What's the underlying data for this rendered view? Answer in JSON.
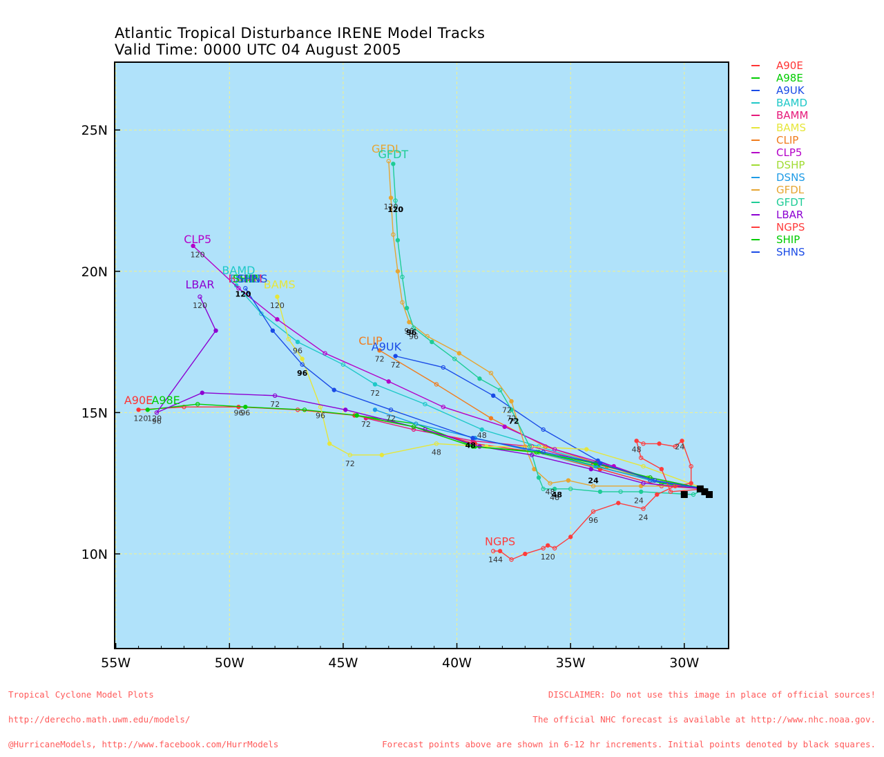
{
  "title": {
    "line1": "Atlantic Tropical Disturbance IRENE Model Tracks",
    "line2": "Valid Time: 0000 UTC 04 August 2005"
  },
  "colors": {
    "ocean": "#b0e2fa",
    "grid": "#f2f28c",
    "frame": "#000000"
  },
  "axes": {
    "lon_ticks": [
      {
        "lon": -55,
        "label": "55W"
      },
      {
        "lon": -50,
        "label": "50W"
      },
      {
        "lon": -45,
        "label": "45W"
      },
      {
        "lon": -40,
        "label": "40W"
      },
      {
        "lon": -35,
        "label": "35W"
      },
      {
        "lon": -30,
        "label": "30W"
      }
    ],
    "lat_ticks": [
      {
        "lat": 25,
        "label": "25N"
      },
      {
        "lat": 20,
        "label": "20N"
      },
      {
        "lat": 15,
        "label": "15N"
      },
      {
        "lat": 10,
        "label": "10N"
      }
    ],
    "lon_range": [
      -55.05,
      -28.05
    ],
    "lat_range": [
      6.65,
      27.4
    ]
  },
  "initial_points": [
    {
      "lon": -30.0,
      "lat": 12.1
    },
    {
      "lon": -29.3,
      "lat": 12.3
    },
    {
      "lon": -29.1,
      "lat": 12.2
    },
    {
      "lon": -28.9,
      "lat": 12.1
    }
  ],
  "models": [
    {
      "name": "A90E",
      "color": "#ff3333",
      "label_at": [
        -54.0,
        15.3
      ],
      "points": [
        [
          -29.1,
          12.3
        ],
        [
          -31.0,
          12.4
        ],
        [
          -33.7,
          13.0
        ],
        [
          -36.5,
          13.6
        ],
        [
          -39.2,
          13.9
        ],
        [
          -41.9,
          14.5
        ],
        [
          -44.5,
          14.9
        ],
        [
          -47.0,
          15.1
        ],
        [
          -49.6,
          15.2
        ],
        [
          -52.0,
          15.2
        ],
        [
          -54.0,
          15.1
        ]
      ],
      "labels": [
        {
          "text": "96",
          "at": [
            -49.6,
            14.9
          ]
        },
        {
          "text": "120",
          "at": [
            -53.9,
            14.7
          ]
        }
      ]
    },
    {
      "name": "A98E",
      "color": "#00cc00",
      "label_at": [
        -52.8,
        15.3
      ],
      "points": [
        [
          -29.1,
          12.3
        ],
        [
          -31.0,
          12.5
        ],
        [
          -33.8,
          13.1
        ],
        [
          -36.4,
          13.6
        ],
        [
          -39.2,
          13.8
        ],
        [
          -41.8,
          14.6
        ],
        [
          -44.4,
          14.9
        ],
        [
          -46.7,
          15.1
        ],
        [
          -49.3,
          15.2
        ],
        [
          -51.4,
          15.3
        ],
        [
          -53.6,
          15.1
        ]
      ],
      "labels": [
        {
          "text": "96",
          "at": [
            -49.3,
            14.9
          ]
        },
        {
          "text": "120",
          "at": [
            -53.3,
            14.7
          ]
        }
      ]
    },
    {
      "name": "A9UK",
      "color": "#1a4be6",
      "label_at": [
        -43.1,
        17.2
      ],
      "points": [
        [
          -29.1,
          12.3
        ],
        [
          -31.5,
          12.6
        ],
        [
          -33.8,
          13.3
        ],
        [
          -36.2,
          14.4
        ],
        [
          -38.4,
          15.6
        ],
        [
          -40.6,
          16.6
        ],
        [
          -42.7,
          17.0
        ]
      ],
      "labels": [
        {
          "text": "72",
          "at": [
            -42.7,
            16.6
          ]
        }
      ]
    },
    {
      "name": "BAMD",
      "color": "#1ec8c8",
      "label_at": [
        -49.6,
        19.9
      ],
      "points": [
        [
          -29.1,
          12.3
        ],
        [
          -31.5,
          12.7
        ],
        [
          -33.9,
          13.2
        ],
        [
          -36.4,
          13.8
        ],
        [
          -38.9,
          14.4
        ],
        [
          -41.4,
          15.3
        ],
        [
          -43.6,
          16.0
        ],
        [
          -45.0,
          16.7
        ],
        [
          -47.0,
          17.5
        ],
        [
          -48.6,
          18.5
        ],
        [
          -49.7,
          19.5
        ]
      ],
      "labels": [
        {
          "text": "72",
          "at": [
            -43.6,
            15.6
          ]
        },
        {
          "text": "48",
          "at": [
            -38.9,
            14.1
          ]
        },
        {
          "text": "96",
          "at": [
            -47.0,
            17.1
          ]
        }
      ]
    },
    {
      "name": "BAMM",
      "color": "#e6197a",
      "label_at": [
        -49.3,
        19.6
      ],
      "points": [
        [
          -29.1,
          12.3
        ],
        [
          -31.5,
          12.7
        ],
        [
          -34.0,
          13.2
        ],
        [
          -36.7,
          13.8
        ],
        [
          -39.3,
          14.0
        ],
        [
          -41.9,
          14.4
        ],
        [
          -44.0,
          14.8
        ]
      ],
      "labels": [
        {
          "text": "72",
          "at": [
            -44.0,
            14.5
          ]
        }
      ]
    },
    {
      "name": "BAMS",
      "color": "#e6e63a",
      "label_at": [
        -47.8,
        19.4
      ],
      "points": [
        [
          -29.1,
          12.3
        ],
        [
          -31.8,
          13.1
        ],
        [
          -34.3,
          13.7
        ],
        [
          -36.8,
          13.8
        ],
        [
          -38.7,
          13.8
        ],
        [
          -40.9,
          13.9
        ],
        [
          -43.3,
          13.5
        ],
        [
          -44.7,
          13.5
        ],
        [
          -45.6,
          13.9
        ],
        [
          -46.0,
          15.2
        ],
        [
          -46.8,
          16.9
        ],
        [
          -47.4,
          17.6
        ],
        [
          -47.9,
          19.1
        ]
      ],
      "labels": [
        {
          "text": "72",
          "at": [
            -44.7,
            13.1
          ]
        },
        {
          "text": "48",
          "at": [
            -40.9,
            13.5
          ]
        },
        {
          "text": "96",
          "at": [
            -46.0,
            14.8
          ]
        },
        {
          "text": "120",
          "at": [
            -47.9,
            18.7
          ]
        }
      ]
    },
    {
      "name": "CLIP",
      "color": "#f07c1e",
      "label_at": [
        -43.8,
        17.4
      ],
      "points": [
        [
          -29.1,
          12.3
        ],
        [
          -31.3,
          12.6
        ],
        [
          -33.4,
          13.1
        ],
        [
          -36.1,
          13.8
        ],
        [
          -38.5,
          14.8
        ],
        [
          -40.9,
          16.0
        ],
        [
          -43.4,
          17.2
        ]
      ],
      "labels": [
        {
          "text": "72",
          "at": [
            -43.4,
            16.8
          ]
        }
      ]
    },
    {
      "name": "CLP5",
      "color": "#b400c8",
      "label_at": [
        -51.4,
        21.0
      ],
      "points": [
        [
          -29.1,
          12.3
        ],
        [
          -31.3,
          12.6
        ],
        [
          -33.1,
          13.1
        ],
        [
          -35.7,
          13.7
        ],
        [
          -37.9,
          14.5
        ],
        [
          -40.6,
          15.2
        ],
        [
          -43.0,
          16.1
        ],
        [
          -45.8,
          17.1
        ],
        [
          -47.9,
          18.3
        ],
        [
          -49.6,
          19.4
        ],
        [
          -51.6,
          20.9
        ]
      ],
      "labels": [
        {
          "text": "120",
          "at": [
            -51.4,
            20.5
          ]
        }
      ]
    },
    {
      "name": "DSHP",
      "color": "#a0dc32",
      "label_at": [
        -49.3,
        19.6
      ],
      "points": [
        [
          -29.1,
          12.3
        ],
        [
          -31.6,
          12.7
        ],
        [
          -34.0,
          13.1
        ],
        [
          -36.6,
          13.6
        ],
        [
          -39.3,
          13.8
        ],
        [
          -41.9,
          14.5
        ],
        [
          -44.4,
          14.9
        ]
      ],
      "labels": []
    },
    {
      "name": "DSNS",
      "color": "#1e9be6",
      "label_at": [
        -49.3,
        19.6
      ],
      "points": [
        [
          -29.1,
          12.3
        ],
        [
          -31.4,
          12.6
        ],
        [
          -33.9,
          13.1
        ],
        [
          -36.5,
          13.6
        ],
        [
          -39.2,
          14.1
        ],
        [
          -41.8,
          14.6
        ],
        [
          -43.6,
          15.1
        ]
      ],
      "labels": []
    },
    {
      "name": "GFDL",
      "color": "#e6a532",
      "label_at": [
        -43.1,
        24.2
      ],
      "points": [
        [
          -29.1,
          12.3
        ],
        [
          -30.4,
          12.4
        ],
        [
          -31.9,
          12.4
        ],
        [
          -34.0,
          12.4
        ],
        [
          -35.1,
          12.6
        ],
        [
          -35.9,
          12.5
        ],
        [
          -36.6,
          13.0
        ],
        [
          -37.0,
          13.8
        ],
        [
          -37.6,
          15.4
        ],
        [
          -38.5,
          16.4
        ],
        [
          -39.9,
          17.1
        ],
        [
          -41.3,
          17.7
        ],
        [
          -42.1,
          18.2
        ],
        [
          -42.4,
          18.9
        ],
        [
          -42.6,
          20.0
        ],
        [
          -42.8,
          21.3
        ],
        [
          -42.9,
          22.6
        ],
        [
          -43.0,
          23.9
        ]
      ],
      "labels": [
        {
          "text": "72",
          "at": [
            -37.8,
            15.0
          ]
        },
        {
          "text": "48",
          "at": [
            -35.9,
            12.1
          ]
        },
        {
          "text": "96",
          "at": [
            -42.1,
            17.8
          ]
        },
        {
          "text": "120",
          "at": [
            -42.9,
            22.2
          ]
        }
      ]
    },
    {
      "name": "GFDT",
      "color": "#1ecc96",
      "label_at": [
        -42.8,
        24.0
      ],
      "points": [
        [
          -29.1,
          12.3
        ],
        [
          -29.6,
          12.1
        ],
        [
          -31.9,
          12.2
        ],
        [
          -32.8,
          12.2
        ],
        [
          -33.7,
          12.2
        ],
        [
          -35.0,
          12.3
        ],
        [
          -35.7,
          12.3
        ],
        [
          -36.2,
          12.3
        ],
        [
          -36.4,
          12.7
        ],
        [
          -36.8,
          13.8
        ],
        [
          -37.6,
          15.1
        ],
        [
          -38.1,
          15.8
        ],
        [
          -39.0,
          16.2
        ],
        [
          -40.1,
          16.9
        ],
        [
          -41.1,
          17.5
        ],
        [
          -41.9,
          18.0
        ],
        [
          -42.2,
          18.7
        ],
        [
          -42.4,
          19.8
        ],
        [
          -42.6,
          21.1
        ],
        [
          -42.7,
          22.5
        ],
        [
          -42.8,
          23.8
        ]
      ],
      "labels": [
        {
          "text": "24",
          "at": [
            -32.0,
            11.8
          ]
        },
        {
          "text": "48",
          "at": [
            -35.7,
            11.9
          ]
        },
        {
          "text": "72",
          "at": [
            -37.6,
            14.7
          ]
        },
        {
          "text": "96",
          "at": [
            -41.9,
            17.6
          ]
        },
        {
          "text": "120",
          "at": [
            -42.7,
            22.1
          ]
        }
      ]
    },
    {
      "name": "LBAR",
      "color": "#8c00d2",
      "label_at": [
        -51.3,
        19.4
      ],
      "points": [
        [
          -29.1,
          12.3
        ],
        [
          -31.8,
          12.5
        ],
        [
          -34.1,
          13.0
        ],
        [
          -36.7,
          13.5
        ],
        [
          -39.0,
          13.8
        ],
        [
          -41.4,
          14.4
        ],
        [
          -44.9,
          15.1
        ],
        [
          -48.0,
          15.6
        ],
        [
          -51.2,
          15.7
        ],
        [
          -53.2,
          15.0
        ],
        [
          -50.6,
          17.9
        ],
        [
          -51.3,
          19.1
        ]
      ],
      "labels": [
        {
          "text": "72",
          "at": [
            -48.0,
            15.2
          ]
        },
        {
          "text": "96",
          "at": [
            -53.2,
            14.6
          ]
        },
        {
          "text": "120",
          "at": [
            -51.3,
            18.7
          ]
        }
      ]
    },
    {
      "name": "NGPS",
      "color": "#ff3c3c",
      "label_at": [
        -38.1,
        10.3
      ],
      "points": [
        [
          -29.1,
          12.3
        ],
        [
          -30.6,
          12.2
        ],
        [
          -31.0,
          13.0
        ],
        [
          -31.9,
          13.4
        ],
        [
          -32.1,
          14.0
        ],
        [
          -31.8,
          13.9
        ],
        [
          -31.1,
          13.9
        ],
        [
          -30.4,
          13.8
        ],
        [
          -30.1,
          14.0
        ],
        [
          -29.7,
          13.1
        ],
        [
          -29.7,
          12.5
        ],
        [
          -30.4,
          12.4
        ],
        [
          -31.2,
          12.1
        ],
        [
          -31.8,
          11.6
        ],
        [
          -32.9,
          11.8
        ],
        [
          -34.0,
          11.5
        ],
        [
          -35.0,
          10.6
        ],
        [
          -35.7,
          10.2
        ],
        [
          -36.0,
          10.3
        ],
        [
          -36.2,
          10.2
        ],
        [
          -37.0,
          10.0
        ],
        [
          -37.6,
          9.8
        ],
        [
          -38.1,
          10.1
        ],
        [
          -38.4,
          10.1
        ]
      ],
      "labels": [
        {
          "text": "24",
          "at": [
            -30.2,
            13.7
          ]
        },
        {
          "text": "24",
          "at": [
            -31.8,
            11.2
          ]
        },
        {
          "text": "48",
          "at": [
            -32.1,
            13.6
          ]
        },
        {
          "text": "96",
          "at": [
            -34.0,
            11.1
          ]
        },
        {
          "text": "120",
          "at": [
            -36.0,
            9.8
          ]
        },
        {
          "text": "144",
          "at": [
            -38.3,
            9.7
          ]
        }
      ]
    },
    {
      "name": "SHIP",
      "color": "#00cc00",
      "label_at": [
        -49.3,
        19.6
      ],
      "points": [
        [
          -29.1,
          12.3
        ],
        [
          -31.5,
          12.7
        ],
        [
          -33.9,
          13.2
        ],
        [
          -36.5,
          13.6
        ],
        [
          -39.3,
          13.8
        ],
        [
          -41.9,
          14.5
        ],
        [
          -44.4,
          14.9
        ]
      ],
      "labels": []
    },
    {
      "name": "SHNS",
      "color": "#1a4be6",
      "label_at": [
        -49.0,
        19.6
      ],
      "points": [
        [
          -29.1,
          12.3
        ],
        [
          -31.3,
          12.6
        ],
        [
          -33.7,
          13.2
        ],
        [
          -36.2,
          13.6
        ],
        [
          -39.3,
          14.1
        ],
        [
          -42.9,
          15.1
        ],
        [
          -45.4,
          15.8
        ],
        [
          -46.8,
          16.7
        ],
        [
          -48.1,
          17.9
        ],
        [
          -49.3,
          19.4
        ]
      ],
      "labels": [
        {
          "text": "72",
          "at": [
            -42.9,
            14.7
          ]
        },
        {
          "text": "96",
          "at": [
            -46.8,
            16.3
          ]
        },
        {
          "text": "120",
          "at": [
            -49.4,
            19.1
          ]
        }
      ]
    }
  ],
  "black_labels": [
    {
      "text": "48",
      "at": [
        -39.4,
        13.75
      ]
    },
    {
      "text": "48",
      "at": [
        -35.6,
        12.0
      ]
    },
    {
      "text": "24",
      "at": [
        -34.0,
        12.5
      ]
    },
    {
      "text": "72",
      "at": [
        -37.5,
        14.6
      ]
    },
    {
      "text": "96",
      "at": [
        -46.8,
        16.3
      ]
    },
    {
      "text": "96",
      "at": [
        -42.0,
        17.75
      ]
    },
    {
      "text": "120",
      "at": [
        -49.4,
        19.1
      ]
    },
    {
      "text": "120",
      "at": [
        -42.7,
        22.1
      ]
    }
  ],
  "footer": {
    "left_lines": [
      "Tropical Cyclone Model Plots",
      "http://derecho.math.uwm.edu/models/",
      "@HurricaneModels, http://www.facebook.com/HurrModels"
    ],
    "right_lines": [
      "DISCLAIMER: Do not use this image in place of official sources!",
      "The official NHC forecast is available at http://www.nhc.noaa.gov.",
      "Forecast points above are shown in 6-12 hr increments. Initial points denoted by black squares."
    ]
  }
}
